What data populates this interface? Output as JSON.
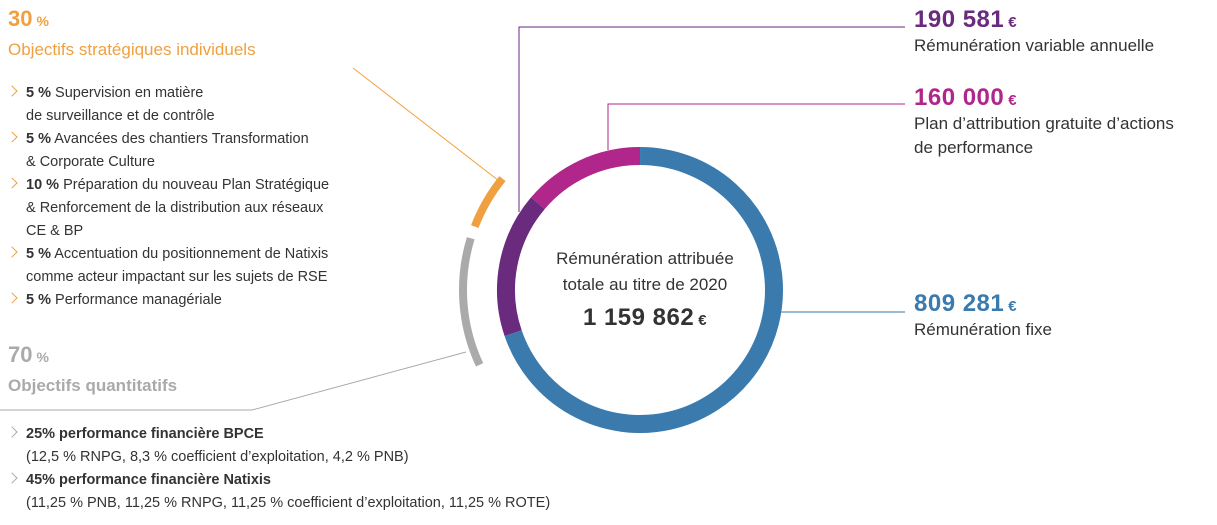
{
  "chart_data": {
    "type": "donut",
    "center_text": "Rémunération attribuée totale au titre de 2020",
    "total": 1159862,
    "total_label": "1 159 862",
    "currency": "€",
    "categories": [
      "Plan d’attribution gratuite d’actions de performance",
      "Rémunération variable annuelle",
      "Rémunération fixe"
    ],
    "values": [
      160000,
      190581,
      809281
    ],
    "value_labels": [
      "160 000",
      "190 581",
      "809 281"
    ],
    "colors": [
      "#b0268a",
      "#6a2a7e",
      "#3a7aad"
    ]
  },
  "objectives": [
    {
      "percent": 30,
      "unit": "%",
      "title": "Objectifs stratégiques individuels",
      "color": "#f0a040",
      "items": [
        {
          "bold": "5 %",
          "lines": [
            "Supervision en matière",
            "de surveillance et de contrôle"
          ]
        },
        {
          "bold": "5 %",
          "lines": [
            "Avancées des chantiers Transformation",
            "& Corporate Culture"
          ]
        },
        {
          "bold": "10 %",
          "lines": [
            " Préparation du nouveau Plan Stratégique",
            "& Renforcement de la distribution aux réseaux",
            "CE & BP"
          ]
        },
        {
          "bold": "5 %",
          "lines": [
            "Accentuation du positionnement de Natixis",
            "comme acteur impactant sur les sujets de RSE"
          ]
        },
        {
          "bold": "5 %",
          "lines": [
            "Performance managériale"
          ]
        }
      ]
    },
    {
      "percent": 70,
      "unit": "%",
      "title": "Objectifs quantitatifs",
      "color": "#aaaaaa",
      "items": [
        {
          "bold": "25% performance financière BPCE",
          "lines": [
            "(12,5 % RNPG, 8,3 % coefficient d’exploitation, 4,2 % PNB)"
          ]
        },
        {
          "bold": "45% performance financière Natixis",
          "lines": [
            "(11,25 % PNB, 11,25 % RNPG, 11,25 % coefficient d’exploitation, 11,25 % ROTE)"
          ]
        }
      ]
    }
  ]
}
